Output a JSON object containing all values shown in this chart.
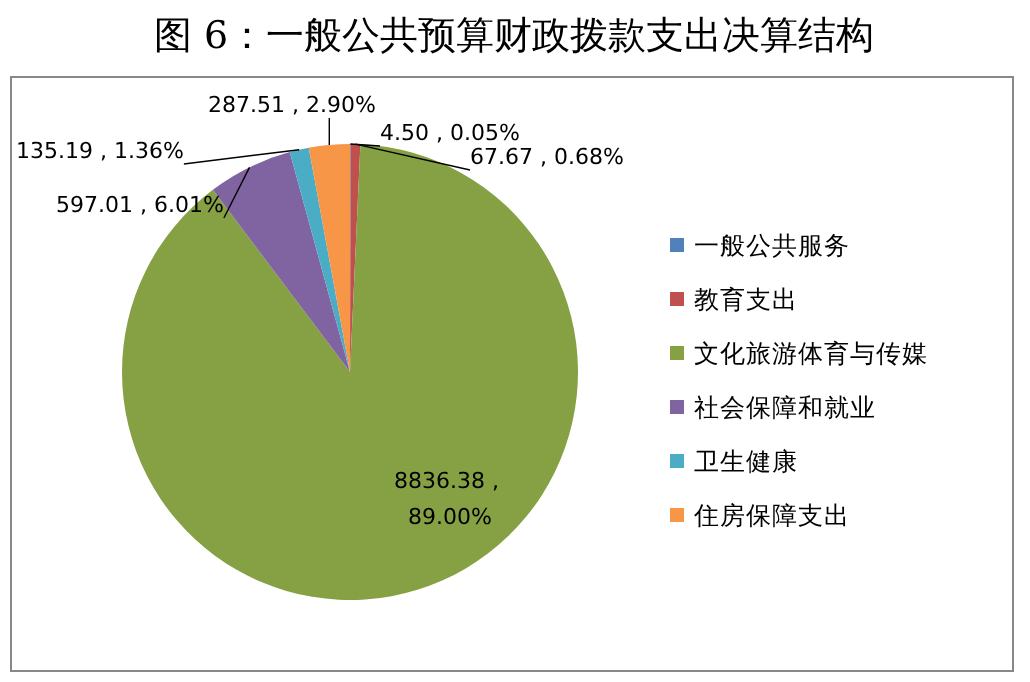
{
  "chart_data": {
    "type": "pie",
    "title": "图 6：一般公共预算财政拨款支出决算结构",
    "categories": [
      "一般公共服务",
      "教育支出",
      "文化旅游体育与传媒",
      "社会保障和就业",
      "卫生健康",
      "住房保障支出"
    ],
    "values": [
      4.5,
      67.67,
      8836.38,
      597.01,
      135.19,
      287.51
    ],
    "colors": [
      "#4f81bd",
      "#c0504d",
      "#86a044",
      "#8064a2",
      "#4bacc6",
      "#f79646"
    ],
    "value_labels": [
      "4.50 , 0.05%",
      "67.67 , 0.68%",
      "8836.38 , 89.00%",
      "597.01 , 6.01%",
      "135.19 , 1.36%",
      "287.51 , 2.90%"
    ],
    "legend": "right"
  }
}
